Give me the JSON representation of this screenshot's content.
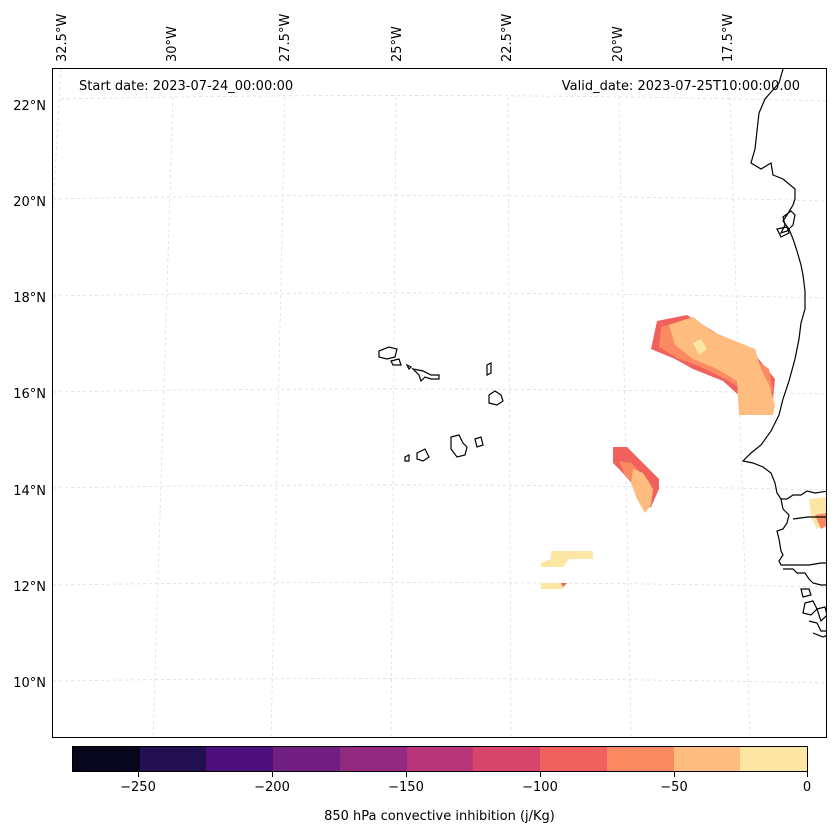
{
  "map": {
    "start_date": "Start date: 2023-07-24_00:00:00",
    "valid_date": "Valid_date: 2023-07-25T10:00:00.00",
    "lon_labels": [
      "32.5°W",
      "30°W",
      "27.5°W",
      "25°W",
      "22.5°W",
      "20°W",
      "17.5°W"
    ],
    "lat_labels": [
      "22°N",
      "20°N",
      "18°N",
      "16°N",
      "14°N",
      "12°N",
      "10°N"
    ]
  },
  "colorbar": {
    "title": "850 hPa convective inhibition (j/Kg)",
    "tick_labels": [
      "−250",
      "−200",
      "−150",
      "−100",
      "−50",
      "0"
    ],
    "colors": [
      "#07061c",
      "#221150",
      "#4d0f7b",
      "#711e81",
      "#932a80",
      "#b63679",
      "#d8456c",
      "#f0605d",
      "#fa8a62",
      "#febc7f",
      "#fde5a4"
    ]
  }
}
